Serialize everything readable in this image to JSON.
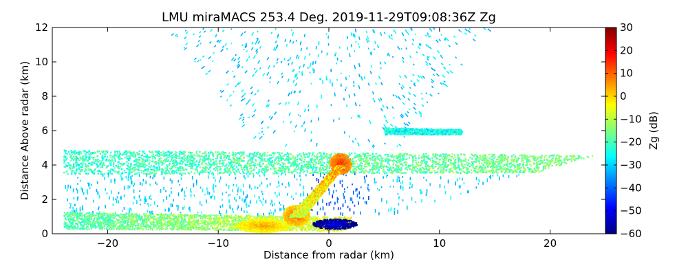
{
  "chart_data": {
    "type": "heatmap",
    "title": "LMU miraMACS 253.4 Deg. 2019-11-29T09:08:36Z  Zg",
    "xlabel": "Distance from radar (km)",
    "ylabel": "Distance Above radar  (km)",
    "xlim": [
      -25,
      25
    ],
    "ylim": [
      0,
      12
    ],
    "x_ticks": [
      -20,
      -10,
      0,
      10,
      20
    ],
    "x_tick_labels": [
      "−20",
      "−10",
      "0",
      "10",
      "20"
    ],
    "y_ticks": [
      0,
      2,
      4,
      6,
      8,
      10,
      12
    ],
    "y_tick_labels": [
      "0",
      "2",
      "4",
      "6",
      "8",
      "10",
      "12"
    ],
    "colorbar": {
      "label": "Zg (dB)",
      "range": [
        -60,
        30
      ],
      "ticks": [
        -60,
        -50,
        -40,
        -30,
        -20,
        -10,
        0,
        10,
        20,
        30
      ],
      "tick_labels": [
        "−60",
        "−50",
        "−40",
        "−30",
        "−20",
        "−10",
        "0",
        "10",
        "20",
        "30"
      ],
      "colormap": "jet",
      "stops": [
        "#00007f",
        "#0000ff",
        "#007fff",
        "#00ffff",
        "#7fff7f",
        "#ffff00",
        "#ff7f00",
        "#ff0000",
        "#7f0000"
      ]
    },
    "scan_edge": {
      "x_start": 0,
      "x_end": 24,
      "y_start": 0,
      "y_end": 4.6
    },
    "features": [
      {
        "kind": "layer",
        "x": [
          -24,
          24
        ],
        "y_bottom": [
          3.5,
          3.6
        ],
        "y_top": [
          4.9,
          4.6
        ],
        "values": [
          -22,
          -15
        ]
      },
      {
        "kind": "layer",
        "x": [
          -24,
          2
        ],
        "y_bottom": [
          0.3,
          0.2
        ],
        "y_top": [
          1.3,
          1.0
        ],
        "values": [
          -20,
          -5
        ]
      },
      {
        "kind": "blob",
        "x": -6,
        "y": 0.5,
        "rx": 2.5,
        "ry": 0.4,
        "value": 5
      },
      {
        "kind": "blob",
        "x": -3,
        "y": 1.1,
        "rx": 1.2,
        "ry": 0.6,
        "value": 10
      },
      {
        "kind": "blob",
        "x": 1,
        "y": 4.1,
        "rx": 1.0,
        "ry": 0.6,
        "value": 15
      },
      {
        "kind": "blob",
        "x": 0.5,
        "y": 0.6,
        "rx": 2.0,
        "ry": 0.3,
        "value": -50
      },
      {
        "kind": "layer",
        "x": [
          5,
          12
        ],
        "y_bottom": [
          5.8,
          5.8
        ],
        "y_top": [
          6.2,
          6.1
        ],
        "values": [
          -25,
          -25
        ]
      }
    ],
    "background_echo": {
      "value_range": [
        -35,
        -25
      ],
      "y_max": 12
    }
  }
}
